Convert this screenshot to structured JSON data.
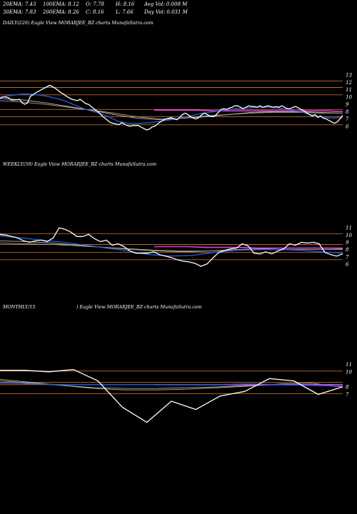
{
  "header": {
    "row1": [
      "20EMA: 7.43",
      "100EMA: 8.12",
      "O: 7.78",
      "H: 8.16",
      "Avg Vol: 0.008  M"
    ],
    "row2": [
      "30EMA: 7.83",
      "200EMA: 8.26",
      "C: 8.16",
      "L: 7.66",
      "Day Vol: 0.031  M"
    ]
  },
  "panels": {
    "daily_caption": "DAILY(226) Eagle   View  MORARJEE_BZ charts MunafaSutra.com",
    "weekly_caption": "WEEKLY(59) Eagle   View  MORARJEE_BZ charts MunafaSutra.com",
    "monthly_caption_left": "MONTHLY/15",
    "monthly_caption_right": ") Eagle   View  MORARJEE_BZ charts MunafaSutra.com"
  },
  "colors": {
    "price": "#ffffff",
    "ema_blue": "#1f5fe0",
    "ema_magenta": "#e040e0",
    "ema_tan": "#c8b090",
    "ema_gray": "#bbbbbb",
    "level_line": "#c06a2a",
    "background": "#000000"
  },
  "chart_data": [
    {
      "type": "line",
      "title": "DAILY(226) Eagle   View  MORARJEE_BZ charts MunafaSutra.com",
      "ylim": [
        5.5,
        13.5
      ],
      "y_ticks": [
        6,
        7,
        8,
        9,
        10,
        11,
        12,
        13
      ],
      "level_lines": [
        6.2,
        7.3,
        8.3,
        10.3,
        11.3,
        12.2
      ],
      "x_count": 125,
      "series": [
        {
          "role": "price",
          "values": [
            9.8,
            10.0,
            10.0,
            9.9,
            9.6,
            9.6,
            9.6,
            9.7,
            9.2,
            9.0,
            9.2,
            10.1,
            10.3,
            10.6,
            10.8,
            11.0,
            11.2,
            11.4,
            11.6,
            11.4,
            11.2,
            10.9,
            10.6,
            10.4,
            10.1,
            9.9,
            9.7,
            9.6,
            9.5,
            9.7,
            9.4,
            9.1,
            9.0,
            8.7,
            8.4,
            8.1,
            7.8,
            7.4,
            7.1,
            6.8,
            6.5,
            6.4,
            6.3,
            6.2,
            6.5,
            6.3,
            6.1,
            6.0,
            6.1,
            6.1,
            6.1,
            5.9,
            5.7,
            5.5,
            5.6,
            5.9,
            6.0,
            6.3,
            6.6,
            6.8,
            7.0,
            7.1,
            7.2,
            7.0,
            6.9,
            7.2,
            7.6,
            7.8,
            7.6,
            7.3,
            7.1,
            7.0,
            7.2,
            7.6,
            7.8,
            7.6,
            7.4,
            7.3,
            7.5,
            7.9,
            8.3,
            8.4,
            8.3,
            8.5,
            8.6,
            8.8,
            8.8,
            8.6,
            8.4,
            8.6,
            8.8,
            8.7,
            8.7,
            8.6,
            8.8,
            8.6,
            8.7,
            8.8,
            8.7,
            8.6,
            8.7,
            8.6,
            8.8,
            8.6,
            8.4,
            8.4,
            8.6,
            8.7,
            8.5,
            8.3,
            8.1,
            7.8,
            7.6,
            7.4,
            7.6,
            7.2,
            7.4,
            7.1,
            7.0,
            6.8,
            6.6,
            6.4,
            6.6,
            7.0,
            7.5
          ]
        },
        {
          "role": "ema_blue",
          "values": [
            10.0,
            10.2,
            10.4,
            10.4,
            10.2,
            9.9,
            9.5,
            8.9,
            8.3,
            7.9,
            7.4,
            6.7,
            6.4,
            6.4,
            6.5,
            6.7,
            6.9,
            7.2,
            7.5,
            7.8,
            8.0,
            8.2,
            8.4,
            8.5,
            8.6,
            8.6,
            8.5,
            8.3,
            8.0,
            7.6,
            7.3,
            7.1,
            7.2
          ]
        },
        {
          "role": "ema_magenta",
          "values": [
            8.2,
            8.2,
            8.2,
            8.2,
            8.1,
            8.1,
            8.1,
            8.1,
            8.1,
            8.1,
            8.1,
            8.1,
            8.1,
            8.0
          ]
        },
        {
          "role": "ema_tan",
          "values": [
            9.8,
            9.6,
            9.2,
            8.7,
            8.2,
            7.6,
            7.1,
            6.9,
            7.1,
            7.4,
            7.6,
            7.9,
            8.0,
            8.0,
            7.9,
            7.8
          ]
        },
        {
          "role": "ema_gray",
          "values": [
            9.5,
            9.3,
            9.0,
            8.6,
            8.2,
            7.8,
            7.3,
            7.0,
            7.1,
            7.3,
            7.6,
            7.8,
            7.9,
            7.9,
            7.8,
            7.8
          ]
        }
      ]
    },
    {
      "type": "line",
      "title": "WEEKLY(59) Eagle   View  MORARJEE_BZ charts MunafaSutra.com",
      "ylim": [
        5.5,
        11.8
      ],
      "y_ticks": [
        6,
        7,
        8,
        9,
        10,
        11
      ],
      "level_lines": [
        6.6,
        7.6,
        8.7,
        10.2
      ],
      "x_count": 59,
      "series": [
        {
          "role": "price",
          "values": [
            10.1,
            10.0,
            9.8,
            9.6,
            9.2,
            9.0,
            9.2,
            9.3,
            9.1,
            9.6,
            11.0,
            10.8,
            10.4,
            9.8,
            9.8,
            10.1,
            9.5,
            9.1,
            9.3,
            8.6,
            8.8,
            8.4,
            7.8,
            7.5,
            7.5,
            7.5,
            7.7,
            7.3,
            7.1,
            6.9,
            6.6,
            6.4,
            6.3,
            6.1,
            5.7,
            6.0,
            6.8,
            7.6,
            7.9,
            8.1,
            8.2,
            8.8,
            8.5,
            7.5,
            7.4,
            7.7,
            7.4,
            7.8,
            8.1,
            8.8,
            8.6,
            9.0,
            8.9,
            9.0,
            8.8,
            7.6,
            7.3,
            7.1,
            7.4
          ]
        },
        {
          "role": "ema_blue",
          "values": [
            9.9,
            9.6,
            9.3,
            9.0,
            8.6,
            8.2,
            7.8,
            7.3,
            7.1,
            7.2,
            7.6,
            7.9,
            8.0,
            8.0,
            7.9,
            7.7,
            7.5
          ]
        },
        {
          "role": "ema_magenta",
          "values": [
            8.4,
            8.4,
            8.4,
            8.3,
            8.3,
            8.3,
            8.2,
            8.2,
            8.2,
            8.2,
            8.2,
            8.2
          ]
        },
        {
          "role": "ema_tan",
          "values": [
            9.2,
            9.1,
            8.9,
            8.6,
            8.3,
            8.0,
            7.8,
            7.7,
            7.8,
            8.0,
            8.1,
            8.2,
            8.2,
            8.1
          ]
        },
        {
          "role": "ema_gray",
          "values": [
            8.9,
            8.8,
            8.7,
            8.5,
            8.3,
            8.1,
            7.9,
            7.8,
            7.8,
            7.9,
            8.0,
            8.0,
            8.0,
            8.0
          ]
        }
      ]
    },
    {
      "type": "line",
      "title": "MONTHLY/15",
      "ylim": [
        2.5,
        11.5
      ],
      "y_ticks": [
        7,
        8,
        10,
        11
      ],
      "level_lines": [
        7.1,
        8.3,
        8.6,
        10.1
      ],
      "x_count": 15,
      "series": [
        {
          "role": "price",
          "values": [
            10.2,
            10.2,
            10.0,
            10.3,
            8.8,
            5.3,
            3.3,
            6.1,
            5.0,
            6.8,
            7.4,
            9.1,
            8.8,
            7.0,
            8.0
          ]
        },
        {
          "role": "ema_blue",
          "values": [
            8.5,
            8.4,
            8.3,
            8.3,
            8.3,
            8.3,
            8.3,
            8.3,
            8.4,
            8.3,
            8.2,
            8.1
          ]
        },
        {
          "role": "ema_magenta",
          "values": [
            8.3,
            8.3,
            8.3,
            8.3,
            8.3,
            8.3,
            8.3,
            8.3,
            8.3,
            8.3,
            8.3,
            8.3
          ]
        },
        {
          "role": "ema_tan",
          "values": [
            9.0,
            8.6,
            8.2,
            7.8,
            7.6,
            7.6,
            7.7,
            7.9,
            8.1,
            8.4,
            8.5,
            8.0
          ]
        },
        {
          "role": "ema_gray",
          "values": [
            8.8,
            8.5,
            8.2,
            7.9,
            7.8,
            7.8,
            7.9,
            8.0,
            8.2,
            8.3,
            8.3,
            8.0
          ]
        }
      ]
    }
  ]
}
